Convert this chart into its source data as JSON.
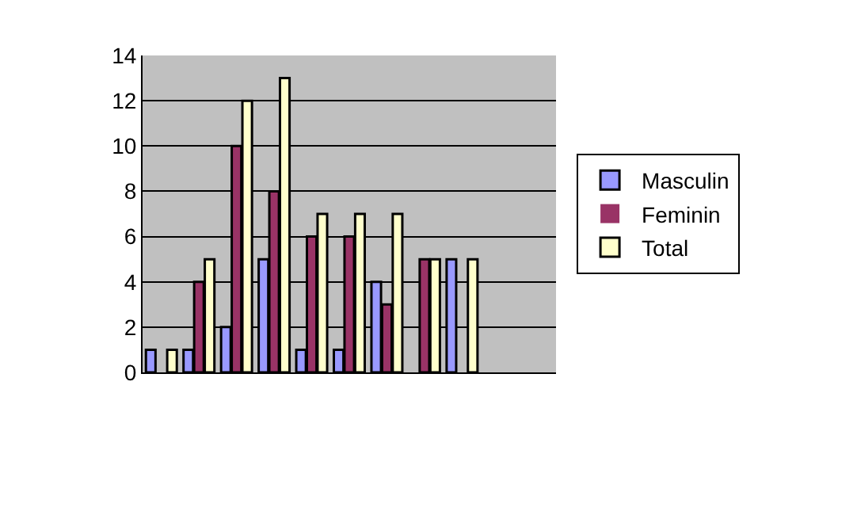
{
  "chart_data": {
    "type": "bar",
    "categories": [
      null,
      null,
      null,
      null,
      null,
      null,
      null,
      null,
      null,
      null,
      null
    ],
    "series": [
      {
        "name": "Masculin",
        "color": "#9999ff",
        "values": [
          1,
          1,
          2,
          5,
          1,
          1,
          4,
          0,
          5,
          0,
          null
        ]
      },
      {
        "name": "Feminin",
        "color": "#993366",
        "values": [
          0,
          4,
          10,
          8,
          6,
          6,
          3,
          5,
          0,
          0,
          null
        ]
      },
      {
        "name": "Total",
        "color": "#ffffcc",
        "values": [
          1,
          5,
          12,
          13,
          7,
          7,
          7,
          5,
          5,
          0,
          null
        ]
      }
    ],
    "ylim": [
      0,
      14
    ],
    "yticks": [
      0,
      2,
      4,
      6,
      8,
      10,
      12,
      14
    ],
    "grid": "y",
    "legend": "right"
  }
}
